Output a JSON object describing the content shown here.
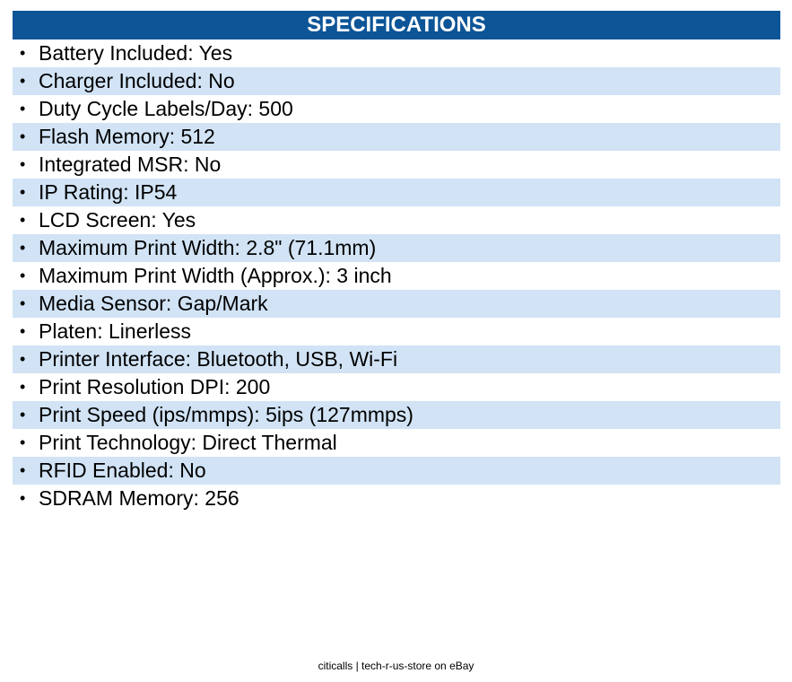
{
  "header": {
    "title": "SPECIFICATIONS"
  },
  "specifications": [
    "Battery Included: Yes",
    "Charger Included: No",
    "Duty Cycle Labels/Day: 500",
    "Flash Memory: 512",
    "Integrated MSR: No",
    "IP Rating: IP54",
    "LCD Screen: Yes",
    "Maximum Print Width: 2.8\" (71.1mm)",
    "Maximum Print Width (Approx.): 3 inch",
    "Media Sensor: Gap/Mark",
    "Platen: Linerless",
    "Printer Interface: Bluetooth, USB, Wi-Fi",
    "Print Resolution DPI: 200",
    "Print Speed (ips/mmps): 5ips (127mmps)",
    "Print Technology: Direct Thermal",
    "RFID Enabled: No",
    "SDRAM Memory: 256"
  ],
  "bullet_glyph": "•",
  "footer": {
    "text": "citicalls | tech-r-us-store on eBay"
  },
  "colors": {
    "header_background": "#0d5597",
    "header_text": "#ffffff",
    "shaded_row": "#d1e3f5"
  }
}
